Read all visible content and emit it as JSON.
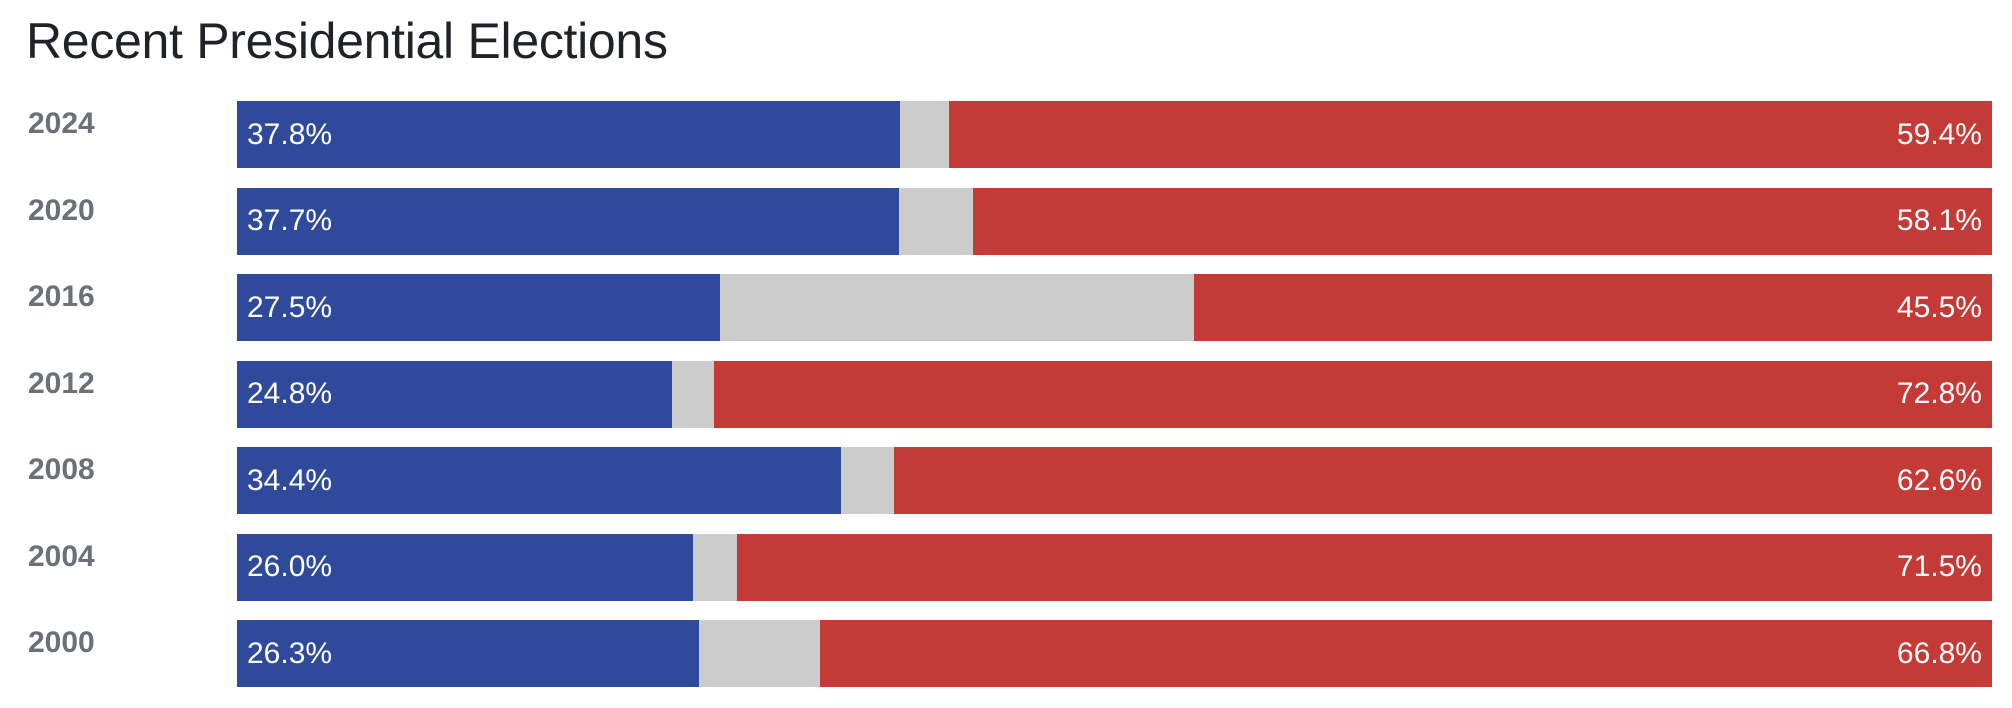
{
  "colors": {
    "democrat": "#2f4a9a",
    "other": "#cccccc",
    "republican": "#c43a37"
  },
  "chart_data": {
    "type": "bar",
    "orientation": "horizontal",
    "stacked": true,
    "title": "Recent Presidential Elections",
    "categories": [
      "2024",
      "2020",
      "2016",
      "2012",
      "2008",
      "2004",
      "2000"
    ],
    "series": [
      {
        "key": "democrat",
        "values": [
          37.8,
          37.7,
          27.5,
          24.8,
          34.4,
          26.0,
          26.3
        ],
        "labels": [
          "37.8%",
          "37.7%",
          "27.5%",
          "24.8%",
          "34.4%",
          "26.0%",
          "26.3%"
        ]
      },
      {
        "key": "other",
        "values": [
          2.8,
          4.2,
          27.0,
          2.4,
          3.0,
          2.5,
          6.9
        ]
      },
      {
        "key": "republican",
        "values": [
          59.4,
          58.1,
          45.5,
          72.8,
          62.6,
          71.5,
          66.8
        ],
        "labels": [
          "59.4%",
          "58.1%",
          "45.5%",
          "72.8%",
          "62.6%",
          "71.5%",
          "66.8%"
        ]
      }
    ],
    "xlim": [
      0,
      100
    ],
    "grid": false,
    "legend": "none"
  }
}
